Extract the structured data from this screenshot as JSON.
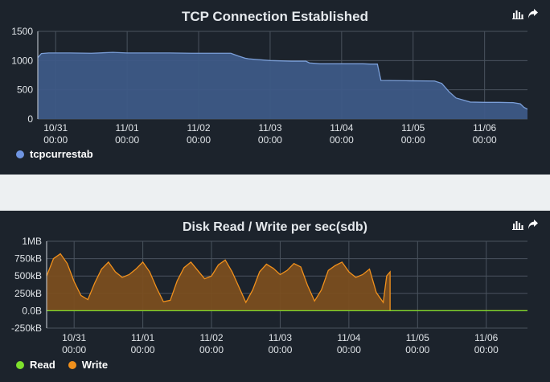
{
  "colors": {
    "panel_bg": "#1c232c",
    "gap_bg": "#edf0f2",
    "tcp_fill": "#3d5a86",
    "tcp_line": "#7b9fd9",
    "read": "#7ee02c",
    "write": "#f0901c",
    "write_fill": "#7a4e1f",
    "grid": "#4a535e"
  },
  "icons": [
    "bar-chart-icon",
    "share-arrow-icon"
  ],
  "tcp": {
    "title": "TCP Connection Established",
    "legend": [
      {
        "label": "tcpcurrestab",
        "color": "#6f95e2"
      }
    ],
    "chart_data": {
      "type": "area",
      "title": "TCP Connection Established",
      "yticks": [
        "1500",
        "1000",
        "500",
        "0"
      ],
      "ylim": [
        0,
        1500
      ],
      "xticks": [
        {
          "date": "10/31",
          "time": "00:00"
        },
        {
          "date": "11/01",
          "time": "00:00"
        },
        {
          "date": "11/02",
          "time": "00:00"
        },
        {
          "date": "11/03",
          "time": "00:00"
        },
        {
          "date": "11/04",
          "time": "00:00"
        },
        {
          "date": "11/05",
          "time": "00:00"
        },
        {
          "date": "11/06",
          "time": "00:00"
        }
      ],
      "xrange_days": [
        -0.25,
        6.6
      ],
      "series": [
        {
          "name": "tcpcurrestab",
          "x": [
            -0.25,
            -0.2,
            -0.1,
            0.2,
            0.5,
            0.8,
            1.0,
            1.3,
            1.6,
            1.9,
            2.2,
            2.45,
            2.55,
            2.65,
            2.7,
            2.8,
            3.0,
            3.3,
            3.5,
            3.55,
            3.7,
            4.0,
            4.3,
            4.4,
            4.5,
            4.55,
            4.9,
            5.3,
            5.4,
            5.5,
            5.6,
            5.8,
            6.0,
            6.2,
            6.4,
            6.5,
            6.55,
            6.6
          ],
          "values": [
            1050,
            1120,
            1130,
            1130,
            1125,
            1140,
            1130,
            1130,
            1130,
            1125,
            1125,
            1125,
            1080,
            1040,
            1030,
            1020,
            1000,
            990,
            990,
            960,
            945,
            945,
            945,
            940,
            940,
            660,
            655,
            650,
            610,
            470,
            360,
            290,
            285,
            285,
            280,
            260,
            200,
            170
          ]
        }
      ]
    }
  },
  "disk": {
    "title": "Disk Read / Write per sec(sdb)",
    "legend": [
      {
        "label": "Read",
        "color": "#7ee02c"
      },
      {
        "label": "Write",
        "color": "#f0901c"
      }
    ],
    "chart_data": {
      "type": "area",
      "title": "Disk Read / Write per sec(sdb)",
      "yticks": [
        "1MB",
        "750kB",
        "500kB",
        "250kB",
        "0.0B",
        "-250kB"
      ],
      "ylim": [
        -250,
        1000
      ],
      "yunit": "kB",
      "xticks": [
        {
          "date": "10/31",
          "time": "00:00"
        },
        {
          "date": "11/01",
          "time": "00:00"
        },
        {
          "date": "11/02",
          "time": "00:00"
        },
        {
          "date": "11/03",
          "time": "00:00"
        },
        {
          "date": "11/04",
          "time": "00:00"
        },
        {
          "date": "11/05",
          "time": "00:00"
        },
        {
          "date": "11/06",
          "time": "00:00"
        }
      ],
      "xrange_days": [
        -0.4,
        6.6
      ],
      "series": [
        {
          "name": "Write",
          "x": [
            -0.4,
            -0.3,
            -0.2,
            -0.1,
            0.0,
            0.1,
            0.2,
            0.3,
            0.4,
            0.5,
            0.6,
            0.7,
            0.8,
            0.9,
            1.0,
            1.1,
            1.2,
            1.3,
            1.4,
            1.5,
            1.6,
            1.7,
            1.8,
            1.9,
            2.0,
            2.1,
            2.2,
            2.3,
            2.4,
            2.5,
            2.6,
            2.7,
            2.8,
            2.9,
            3.0,
            3.1,
            3.2,
            3.3,
            3.4,
            3.5,
            3.6,
            3.7,
            3.8,
            3.9,
            4.0,
            4.1,
            4.2,
            4.3,
            4.4,
            4.5,
            4.55,
            4.6,
            4.6,
            5.0,
            6.0,
            6.6
          ],
          "values": [
            500,
            750,
            820,
            680,
            420,
            220,
            160,
            400,
            600,
            700,
            560,
            480,
            520,
            600,
            700,
            560,
            330,
            130,
            150,
            430,
            620,
            700,
            580,
            460,
            500,
            660,
            730,
            560,
            340,
            120,
            300,
            560,
            670,
            610,
            520,
            580,
            680,
            630,
            360,
            140,
            300,
            580,
            650,
            700,
            560,
            480,
            520,
            600,
            260,
            120,
            500,
            560,
            0,
            0,
            0,
            0
          ]
        },
        {
          "name": "Read",
          "x": [
            -0.4,
            6.6
          ],
          "values": [
            0,
            0
          ]
        }
      ]
    }
  }
}
